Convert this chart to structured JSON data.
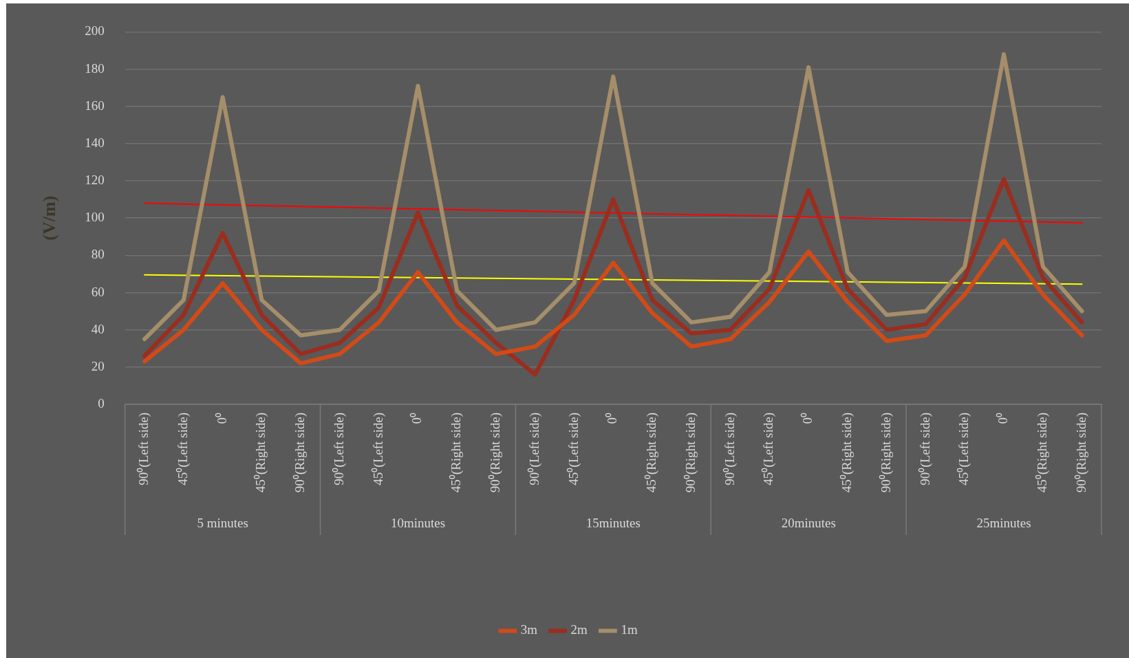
{
  "chart_data": {
    "type": "line",
    "ylabel": "(V/m)",
    "categories": [
      "90⁰(Left side)",
      "45⁰(Left side)",
      "0⁰",
      "45⁰(Right side)",
      "90⁰(Right side)",
      "90⁰(Left side)",
      "45⁰(Left side)",
      "0⁰",
      "45⁰(Right side)",
      "90⁰(Right side)",
      "90⁰(Left side)",
      "45⁰(Left side)",
      "0⁰",
      "45⁰(Right side)",
      "90⁰(Right side)",
      "90⁰(Left side)",
      "45⁰(Left side)",
      "0⁰",
      "45⁰(Right side)",
      "90⁰(Right side)",
      "90⁰(Left side)",
      "45⁰(Left side)",
      "0⁰",
      "45⁰(Right side)",
      "90⁰(Right side)"
    ],
    "annotations": [
      "5 minutes",
      "10minutes",
      "15minutes",
      "20minutes",
      "25minutes"
    ],
    "series": [
      {
        "name": "3m",
        "color": "#d24a17",
        "values": [
          23,
          40,
          65,
          40,
          22,
          27,
          44,
          71,
          44,
          27,
          31,
          48,
          76,
          49,
          31,
          35,
          55,
          82,
          55,
          34,
          37,
          59,
          88,
          59,
          37
        ]
      },
      {
        "name": "2m",
        "color": "#9b2d1f",
        "values": [
          26,
          48,
          92,
          48,
          27,
          33,
          52,
          103,
          53,
          33,
          16,
          56,
          110,
          56,
          38,
          40,
          62,
          115,
          62,
          40,
          43,
          68,
          121,
          68,
          44
        ]
      },
      {
        "name": "1m",
        "color": "#a58e6a",
        "values": [
          35,
          56,
          165,
          56,
          37,
          40,
          61,
          171,
          61,
          40,
          44,
          65,
          176,
          65,
          44,
          47,
          71,
          181,
          71,
          48,
          50,
          74,
          188,
          74,
          50
        ]
      },
      {
        "color": "#ff0000",
        "values": [
          108,
          null,
          null,
          null,
          null,
          null,
          null,
          null,
          null,
          null,
          null,
          null,
          null,
          null,
          null,
          null,
          null,
          null,
          null,
          null,
          null,
          null,
          null,
          null,
          97.5
        ]
      },
      {
        "color": "#ffff00",
        "values": [
          69.5,
          null,
          null,
          null,
          null,
          null,
          null,
          null,
          null,
          null,
          null,
          null,
          null,
          null,
          null,
          null,
          null,
          null,
          null,
          null,
          null,
          null,
          null,
          null,
          64.5
        ]
      }
    ],
    "ylim": [
      0,
      200
    ],
    "yticks": [
      0,
      20,
      40,
      60,
      80,
      100,
      120,
      140,
      160,
      180,
      200
    ],
    "grid": "y",
    "legend": "bottom",
    "marker": "none",
    "line_style": "solid"
  }
}
